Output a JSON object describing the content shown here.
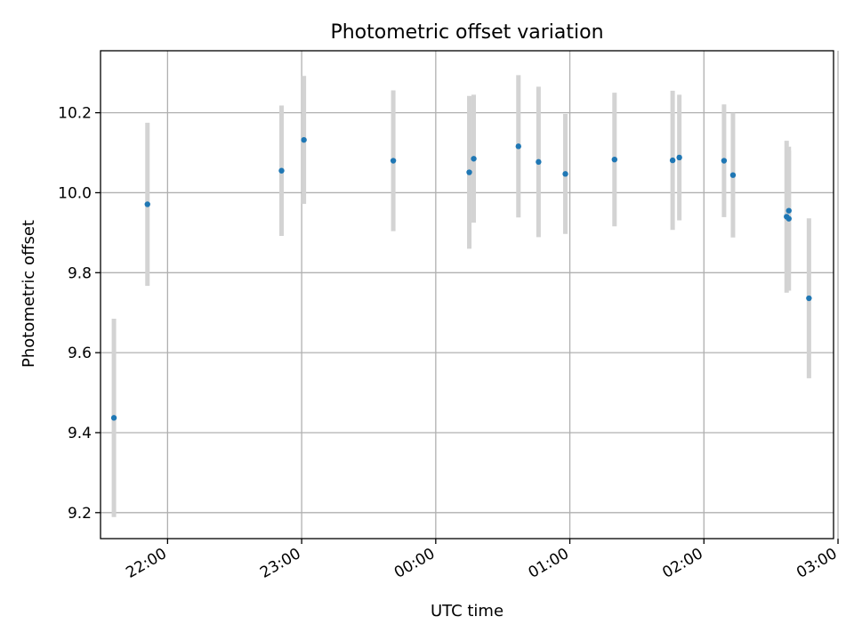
{
  "chart_data": {
    "type": "scatter",
    "title": "Photometric offset variation",
    "xlabel": "UTC time",
    "ylabel": "Photometric offset",
    "x_axis": {
      "kind": "time",
      "range_minutes": [
        -150,
        178
      ],
      "ticks": [
        {
          "value": -120,
          "label": "22:00"
        },
        {
          "value": -60,
          "label": "23:00"
        },
        {
          "value": 0,
          "label": "00:00"
        },
        {
          "value": 60,
          "label": "01:00"
        },
        {
          "value": 120,
          "label": "02:00"
        },
        {
          "value": 180,
          "label": "03:00"
        }
      ]
    },
    "y_axis": {
      "range": [
        9.135,
        10.355
      ],
      "ticks": [
        {
          "value": 9.2,
          "label": "9.2"
        },
        {
          "value": 9.4,
          "label": "9.4"
        },
        {
          "value": 9.6,
          "label": "9.6"
        },
        {
          "value": 9.8,
          "label": "9.8"
        },
        {
          "value": 10.0,
          "label": "10.0"
        },
        {
          "value": 10.2,
          "label": "10.2"
        }
      ]
    },
    "grid": true,
    "colors": {
      "point": "#1f77b4",
      "errorbar": "#d3d3d3",
      "grid": "#b0b0b0",
      "axis": "#000000"
    },
    "points": [
      {
        "t": "21:36",
        "y": 9.437,
        "err": 0.248
      },
      {
        "t": "21:51",
        "y": 9.971,
        "err": 0.204
      },
      {
        "t": "22:51",
        "y": 10.055,
        "err": 0.163
      },
      {
        "t": "23:01",
        "y": 10.132,
        "err": 0.16
      },
      {
        "t": "23:41",
        "y": 10.08,
        "err": 0.176
      },
      {
        "t": "00:15",
        "y": 10.051,
        "err": 0.191
      },
      {
        "t": "00:17",
        "y": 10.085,
        "err": 0.16
      },
      {
        "t": "00:37",
        "y": 10.116,
        "err": 0.178
      },
      {
        "t": "00:46",
        "y": 10.077,
        "err": 0.188
      },
      {
        "t": "00:58",
        "y": 10.047,
        "err": 0.15
      },
      {
        "t": "01:20",
        "y": 10.083,
        "err": 0.167
      },
      {
        "t": "01:46",
        "y": 10.081,
        "err": 0.174
      },
      {
        "t": "01:49",
        "y": 10.088,
        "err": 0.157
      },
      {
        "t": "02:09",
        "y": 10.08,
        "err": 0.141
      },
      {
        "t": "02:13",
        "y": 10.044,
        "err": 0.156
      },
      {
        "t": "02:37",
        "y": 9.94,
        "err": 0.19
      },
      {
        "t": "02:38",
        "y": 9.935,
        "err": 0.18
      },
      {
        "t": "02:38",
        "y": 9.955,
        "err": 0.15
      },
      {
        "t": "02:47",
        "y": 9.736,
        "err": 0.2
      }
    ]
  }
}
